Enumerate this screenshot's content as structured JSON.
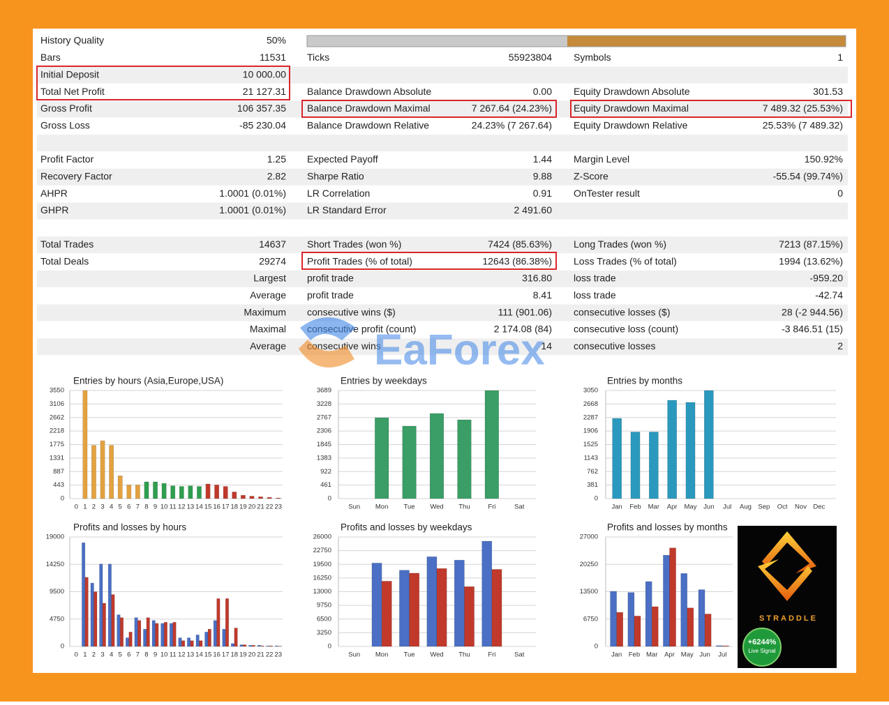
{
  "report": {
    "rows": [
      {
        "c1": {
          "label": "History Quality",
          "value": "50%"
        }
      },
      {
        "c1": {
          "label": "Bars",
          "value": "11531"
        },
        "c2": {
          "label": "Ticks",
          "value": "55923804"
        },
        "c3": {
          "label": "Symbols",
          "value": "1"
        }
      },
      {
        "c1": {
          "label": "Initial Deposit",
          "value": "10 000.00"
        }
      },
      {
        "c1": {
          "label": "Total Net Profit",
          "value": "21 127.31"
        },
        "c2": {
          "label": "Balance Drawdown Absolute",
          "value": "0.00"
        },
        "c3": {
          "label": "Equity Drawdown Absolute",
          "value": "301.53"
        }
      },
      {
        "c1": {
          "label": "Gross Profit",
          "value": "106 357.35"
        },
        "c2": {
          "label": "Balance Drawdown Maximal",
          "value": "7 267.64 (24.23%)"
        },
        "c3": {
          "label": "Equity Drawdown Maximal",
          "value": "7 489.32 (25.53%)"
        }
      },
      {
        "c1": {
          "label": "Gross Loss",
          "value": "-85 230.04"
        },
        "c2": {
          "label": "Balance Drawdown Relative",
          "value": "24.23% (7 267.64)"
        },
        "c3": {
          "label": "Equity Drawdown Relative",
          "value": "25.53% (7 489.32)"
        }
      },
      {
        "c1": {
          "label": "Profit Factor",
          "value": "1.25"
        },
        "c2": {
          "label": "Expected Payoff",
          "value": "1.44"
        },
        "c3": {
          "label": "Margin Level",
          "value": "150.92%"
        }
      },
      {
        "c1": {
          "label": "Recovery Factor",
          "value": "2.82"
        },
        "c2": {
          "label": "Sharpe Ratio",
          "value": "9.88"
        },
        "c3": {
          "label": "Z-Score",
          "value": "-55.54 (99.74%)"
        }
      },
      {
        "c1": {
          "label": "AHPR",
          "value": "1.0001 (0.01%)"
        },
        "c2": {
          "label": "LR Correlation",
          "value": "0.91"
        },
        "c3": {
          "label": "OnTester result",
          "value": "0"
        }
      },
      {
        "c1": {
          "label": "GHPR",
          "value": "1.0001 (0.01%)"
        },
        "c2": {
          "label": "LR Standard Error",
          "value": "2 491.60"
        }
      },
      {
        "c1": {
          "label": "Total Trades",
          "value": "14637"
        },
        "c2": {
          "label": "Short Trades (won %)",
          "value": "7424 (85.63%)"
        },
        "c3": {
          "label": "Long Trades (won %)",
          "value": "7213 (87.15%)"
        }
      },
      {
        "c1": {
          "label": "Total Deals",
          "value": "29274"
        },
        "c2": {
          "label": "Profit Trades (% of total)",
          "value": "12643 (86.38%)"
        },
        "c3": {
          "label": "Loss Trades (% of total)",
          "value": "1994 (13.62%)"
        }
      },
      {
        "c1": {
          "label": "Largest"
        },
        "c2": {
          "label": "profit trade",
          "value": "316.80"
        },
        "c3": {
          "label": "loss trade",
          "value": "-959.20"
        }
      },
      {
        "c1": {
          "label": "Average"
        },
        "c2": {
          "label": "profit trade",
          "value": "8.41"
        },
        "c3": {
          "label": "loss trade",
          "value": "-42.74"
        }
      },
      {
        "c1": {
          "label": "Maximum"
        },
        "c2": {
          "label": "consecutive wins ($)",
          "value": "111 (901.06)"
        },
        "c3": {
          "label": "consecutive losses ($)",
          "value": "28 (-2 944.56)"
        }
      },
      {
        "c1": {
          "label": "Maximal"
        },
        "c2": {
          "label": "consecutive profit (count)",
          "value": "2 174.08 (84)"
        },
        "c3": {
          "label": "consecutive loss (count)",
          "value": "-3 846.51 (15)"
        }
      },
      {
        "c1": {
          "label": "Average"
        },
        "c2": {
          "label": "consecutive wins",
          "value": "14"
        },
        "c3": {
          "label": "consecutive losses",
          "value": "2"
        }
      }
    ]
  },
  "watermark": "EaForex",
  "ad": {
    "brand": "STRADDLE",
    "badge": "+6244%",
    "badge_sub": "Live Signal"
  },
  "chart_data": [
    {
      "type": "bar",
      "title": "Entries by hours (Asia,Europe,USA)",
      "categories": [
        "0",
        "1",
        "2",
        "3",
        "4",
        "5",
        "6",
        "7",
        "8",
        "9",
        "10",
        "11",
        "12",
        "13",
        "14",
        "15",
        "16",
        "17",
        "18",
        "19",
        "20",
        "21",
        "22",
        "23"
      ],
      "values": [
        0,
        3550,
        1750,
        1900,
        1750,
        750,
        450,
        450,
        550,
        550,
        500,
        420,
        400,
        420,
        400,
        480,
        450,
        400,
        220,
        110,
        80,
        60,
        40,
        20
      ],
      "colors": [
        "#e3a23f",
        "#e3a23f",
        "#e3a23f",
        "#e3a23f",
        "#e3a23f",
        "#e3a23f",
        "#e3a23f",
        "#e3a23f",
        "#2f9e4f",
        "#2f9e4f",
        "#2f9e4f",
        "#2f9e4f",
        "#2f9e4f",
        "#2f9e4f",
        "#2f9e4f",
        "#c0392b",
        "#c0392b",
        "#c0392b",
        "#c0392b",
        "#c0392b",
        "#c0392b",
        "#c0392b",
        "#c0392b",
        "#c0392b"
      ],
      "ylim": [
        0,
        3550
      ],
      "yticks": [
        0,
        443,
        887,
        1331,
        1775,
        2218,
        2662,
        3106,
        3550
      ],
      "grid": true
    },
    {
      "type": "bar",
      "title": "Entries by weekdays",
      "categories": [
        "Sun",
        "Mon",
        "Tue",
        "Wed",
        "Thu",
        "Fri",
        "Sat"
      ],
      "values": [
        0,
        2760,
        2475,
        2904,
        2690,
        3689,
        0
      ],
      "color": "#3a9e66",
      "ylim": [
        0,
        3689
      ],
      "yticks": [
        0,
        461,
        922,
        1383,
        1845,
        2306,
        2767,
        3228,
        3689
      ],
      "grid": true
    },
    {
      "type": "bar",
      "title": "Entries by months",
      "categories": [
        "Jan",
        "Feb",
        "Mar",
        "Apr",
        "May",
        "Jun",
        "Jul",
        "Aug",
        "Sep",
        "Oct",
        "Nov",
        "Dec"
      ],
      "values": [
        2263,
        1880,
        1880,
        2775,
        2715,
        3050,
        0,
        0,
        0,
        0,
        0,
        0
      ],
      "color": "#2b98bd",
      "ylim": [
        0,
        3050
      ],
      "yticks": [
        0,
        381,
        762,
        1143,
        1525,
        1906,
        2287,
        2668,
        3050
      ],
      "grid": true
    },
    {
      "type": "grouped-bar",
      "title": "Profits and losses by hours",
      "categories": [
        "0",
        "1",
        "2",
        "3",
        "4",
        "5",
        "6",
        "7",
        "8",
        "9",
        "10",
        "11",
        "12",
        "13",
        "14",
        "15",
        "16",
        "17",
        "18",
        "19",
        "20",
        "21",
        "22",
        "23"
      ],
      "series": [
        {
          "color": "#4a6fc4",
          "values": [
            0,
            18000,
            11000,
            14300,
            14300,
            5500,
            1500,
            5000,
            3000,
            4500,
            4000,
            4000,
            1500,
            1500,
            2000,
            2500,
            4500,
            3000,
            500,
            300,
            200,
            200,
            100,
            100
          ]
        },
        {
          "color": "#c0392b",
          "values": [
            0,
            12000,
            9500,
            7500,
            9000,
            5000,
            2500,
            4500,
            5000,
            4000,
            4200,
            4200,
            1000,
            1000,
            1000,
            3000,
            8300,
            8300,
            3200,
            300,
            200,
            100,
            100,
            50
          ]
        }
      ],
      "ylim": [
        0,
        19000
      ],
      "yticks": [
        0,
        4750,
        9500,
        14250,
        19000
      ],
      "grid": true
    },
    {
      "type": "grouped-bar",
      "title": "Profits and losses by weekdays",
      "categories": [
        "Sun",
        "Mon",
        "Tue",
        "Wed",
        "Thu",
        "Fri",
        "Sat"
      ],
      "series": [
        {
          "color": "#4a6fc4",
          "values": [
            0,
            19800,
            18100,
            21300,
            20500,
            25000,
            0
          ]
        },
        {
          "color": "#c0392b",
          "values": [
            0,
            15500,
            17400,
            18500,
            14200,
            18300,
            0
          ]
        }
      ],
      "ylim": [
        0,
        26000
      ],
      "yticks": [
        0,
        3250,
        6500,
        9750,
        13000,
        16250,
        19500,
        22750,
        26000
      ],
      "grid": true
    },
    {
      "type": "grouped-bar",
      "title": "Profits and losses by months",
      "categories": [
        "Jan",
        "Feb",
        "Mar",
        "Apr",
        "May",
        "Jun",
        "Jul"
      ],
      "series": [
        {
          "color": "#4a6fc4",
          "values": [
            13600,
            13300,
            16000,
            22500,
            18000,
            14000,
            200
          ]
        },
        {
          "color": "#c0392b",
          "values": [
            8400,
            7500,
            9800,
            24300,
            9500,
            8000,
            150
          ]
        }
      ],
      "ylim": [
        0,
        27000
      ],
      "yticks": [
        0,
        6750,
        13500,
        20250,
        27000
      ],
      "grid": true
    }
  ]
}
